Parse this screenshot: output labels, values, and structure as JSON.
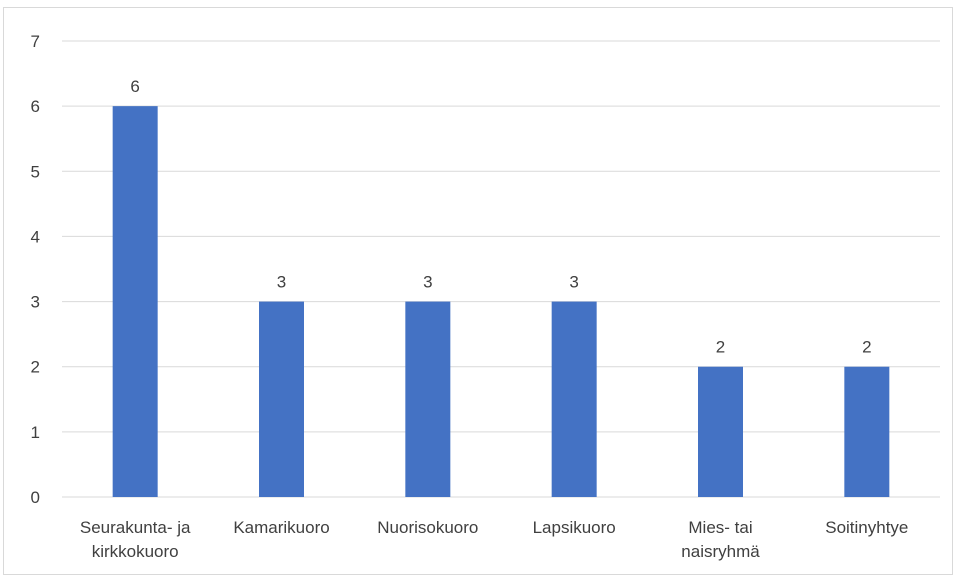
{
  "chart_data": {
    "type": "bar",
    "categories": [
      [
        "Seurakunta- ja",
        "kirkkokuoro"
      ],
      [
        "Kamarikuoro"
      ],
      [
        "Nuorisokuoro"
      ],
      [
        "Lapsikuoro"
      ],
      [
        "Mies- tai",
        "naisryhmä"
      ],
      [
        "Soitinyhtye"
      ]
    ],
    "values": [
      6,
      3,
      3,
      3,
      2,
      2
    ],
    "ylim": [
      0,
      7
    ],
    "yticks": [
      0,
      1,
      2,
      3,
      4,
      5,
      6,
      7
    ],
    "grid": true,
    "bar_color": "#4472C4",
    "gridline_color": "#d9d9d9",
    "data_labels": true
  }
}
